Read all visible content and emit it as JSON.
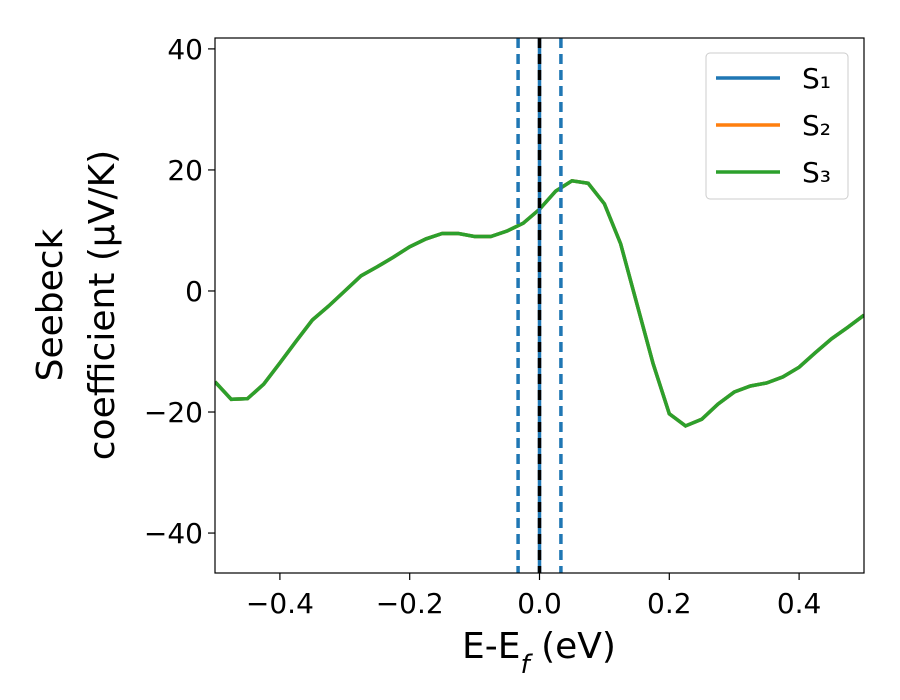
{
  "chart_data": {
    "type": "line",
    "xlabel": "E-E",
    "xlabel_sub": "f",
    "xlabel_unit": "(eV)",
    "ylabel": [
      "Seebeck",
      "coefficient  (μV/K)"
    ],
    "x": [
      -0.5,
      -0.475,
      -0.45,
      -0.425,
      -0.4,
      -0.375,
      -0.35,
      -0.325,
      -0.3,
      -0.275,
      -0.25,
      -0.225,
      -0.2,
      -0.175,
      -0.15,
      -0.125,
      -0.1,
      -0.075,
      -0.05,
      -0.025,
      0,
      0.025,
      0.05,
      0.075,
      0.1,
      0.125,
      0.15,
      0.175,
      0.2,
      0.225,
      0.25,
      0.275,
      0.3,
      0.325,
      0.35,
      0.375,
      0.4,
      0.425,
      0.45,
      0.475,
      0.5
    ],
    "series": [
      {
        "name": "S₁",
        "color": "#1f77b4",
        "values": [
          -15,
          -17.9,
          -17.8,
          -15.4,
          -11.9,
          -8.3,
          -4.8,
          -2.5,
          0,
          2.5,
          4,
          5.6,
          7.3,
          8.6,
          9.5,
          9.5,
          9,
          9,
          9.9,
          11.2,
          13.5,
          16.5,
          18.2,
          17.8,
          14.4,
          7.8,
          -2.1,
          -12,
          -20.3,
          -22.3,
          -21.2,
          -18.7,
          -16.7,
          -15.7,
          -15.2,
          -14.2,
          -12.6,
          -10.2,
          -7.9,
          -6,
          -4
        ]
      },
      {
        "name": "S₂",
        "color": "#ff7f0e",
        "values": [
          -15,
          -17.9,
          -17.8,
          -15.4,
          -11.9,
          -8.3,
          -4.8,
          -2.5,
          0,
          2.5,
          4,
          5.6,
          7.3,
          8.6,
          9.5,
          9.5,
          9,
          9,
          9.9,
          11.2,
          13.5,
          16.5,
          18.2,
          17.8,
          14.4,
          7.8,
          -2.1,
          -12,
          -20.3,
          -22.3,
          -21.2,
          -18.7,
          -16.7,
          -15.7,
          -15.2,
          -14.2,
          -12.6,
          -10.2,
          -7.9,
          -6,
          -4
        ]
      },
      {
        "name": "S₃",
        "color": "#2ca02c",
        "values": [
          -15,
          -17.9,
          -17.8,
          -15.4,
          -11.9,
          -8.3,
          -4.8,
          -2.5,
          0,
          2.5,
          4,
          5.6,
          7.3,
          8.6,
          9.5,
          9.5,
          9,
          9,
          9.9,
          11.2,
          13.5,
          16.5,
          18.2,
          17.8,
          14.4,
          7.8,
          -2.1,
          -12,
          -20.3,
          -22.3,
          -21.2,
          -18.7,
          -16.7,
          -15.7,
          -15.2,
          -14.2,
          -12.6,
          -10.2,
          -7.9,
          -6,
          -4
        ]
      }
    ],
    "vlines": [
      {
        "x": -0.033,
        "color": "#1f77b4",
        "dashed": true
      },
      {
        "x": 0,
        "color": "#1f77b4",
        "dashed": false
      },
      {
        "x": 0.033,
        "color": "#1f77b4",
        "dashed": true
      },
      {
        "x": 0,
        "color": "#000000",
        "dashed": true
      }
    ],
    "xlim": [
      -0.5,
      0.5
    ],
    "xticks": [
      {
        "value": -0.4,
        "label": "−0.4"
      },
      {
        "value": -0.2,
        "label": "−0.2"
      },
      {
        "value": 0,
        "label": "0.0"
      },
      {
        "value": 0.2,
        "label": "0.2"
      },
      {
        "value": 0.4,
        "label": "0.4"
      }
    ],
    "ylim": [
      -46.6,
      41.8
    ],
    "yticks": [
      {
        "value": -40,
        "label": "−40"
      },
      {
        "value": -20,
        "label": "−20"
      },
      0,
      20,
      40
    ],
    "legend": "upper right",
    "grid": false
  }
}
